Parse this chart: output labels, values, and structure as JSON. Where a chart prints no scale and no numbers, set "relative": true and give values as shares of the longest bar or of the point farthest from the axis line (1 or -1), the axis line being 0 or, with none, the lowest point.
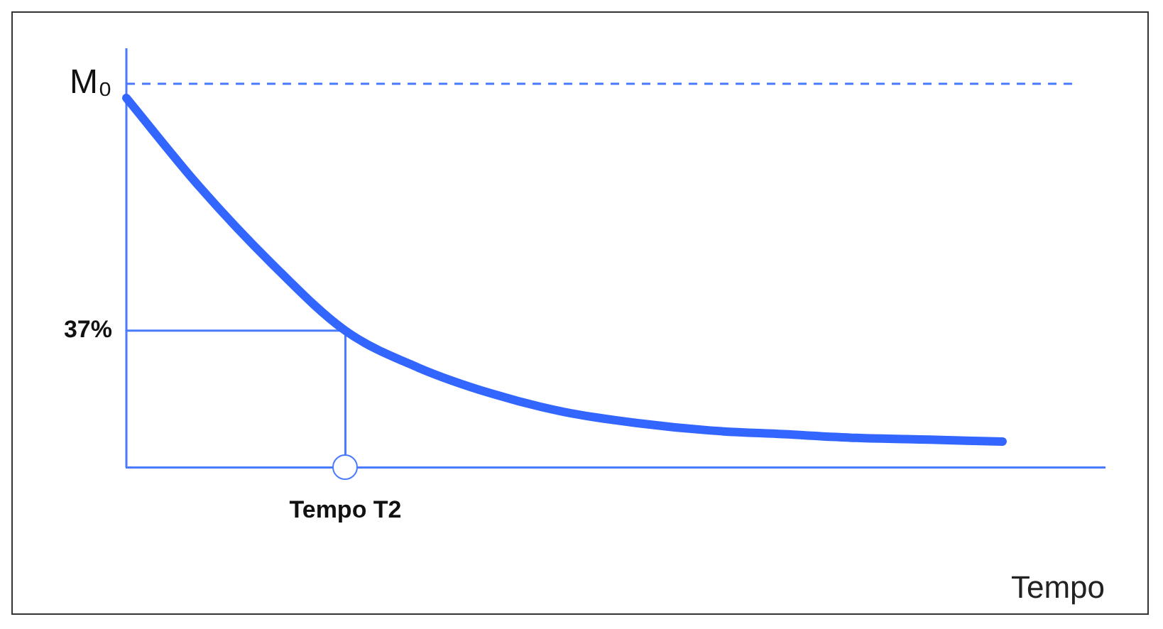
{
  "chart_data": {
    "type": "line",
    "xlabel": "Tempo",
    "categories": [
      null,
      null,
      null,
      null,
      null,
      null,
      null,
      null,
      null,
      null,
      null,
      null,
      null
    ],
    "relative": true,
    "grid": false,
    "legend": false,
    "marker": "none",
    "annotations": [
      "M₀",
      "37%",
      "Tempo T2"
    ],
    "series": [
      {
        "color": "#3366ff",
        "values": [
          1,
          0.76,
          0.55,
          0.37,
          0.27,
          0.2,
          0.15,
          0.12,
          0.1,
          0.09,
          0.08,
          0.075,
          0.07
        ]
      },
      {
        "color": "#4a7bff",
        "values": [
          0.37,
          0.37,
          0.37,
          0.37,
          null,
          null,
          null,
          null,
          null,
          null,
          null,
          null,
          null
        ]
      }
    ]
  }
}
